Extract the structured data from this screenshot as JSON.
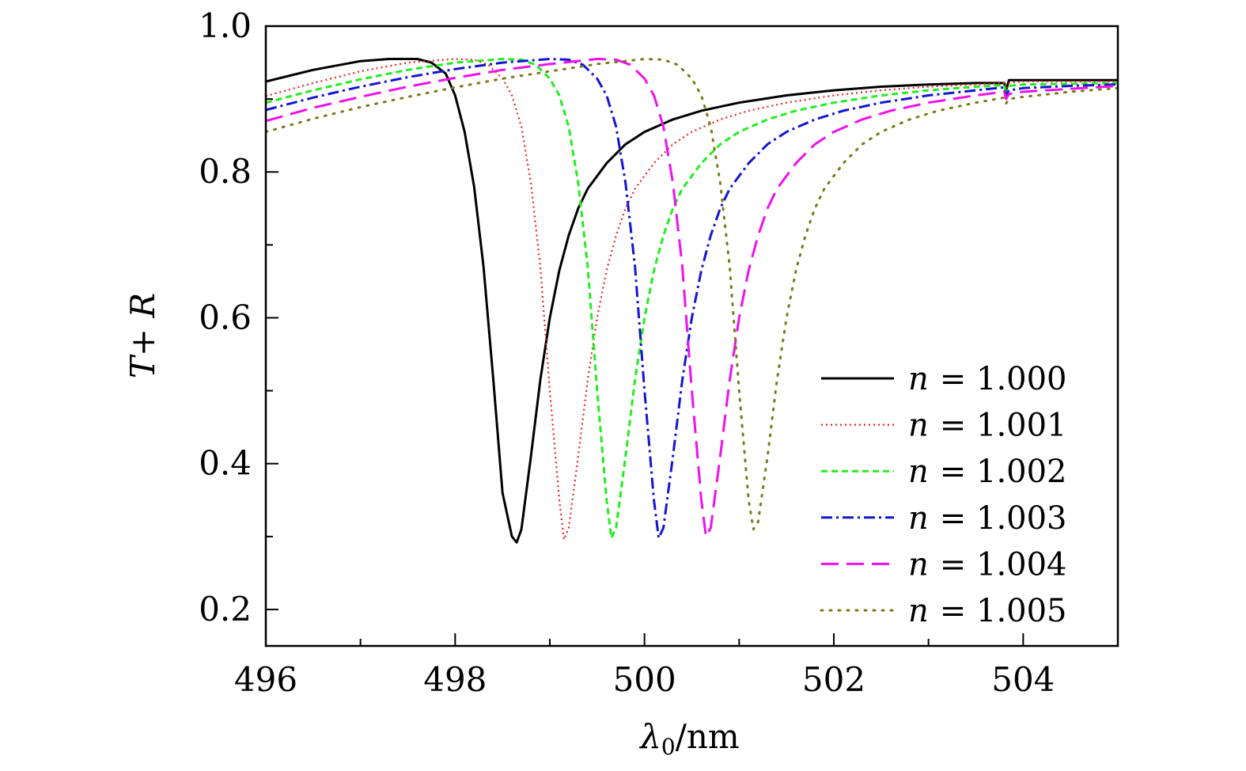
{
  "chart_data": {
    "type": "line",
    "title": "",
    "xlabel": "λ0/nm",
    "xlabel_main": "λ",
    "xlabel_sub": "0",
    "xlabel_unit": "/nm",
    "ylabel": "T+ R",
    "ylabel_parts": [
      "T",
      "+ ",
      "R"
    ],
    "xlim": [
      496,
      505
    ],
    "ylim": [
      0.15,
      1.0
    ],
    "x_ticks": [
      496,
      498,
      500,
      502,
      504
    ],
    "x_tick_labels": [
      "496",
      "498",
      "500",
      "502",
      "504"
    ],
    "x_minor_ticks": [
      497,
      499,
      501,
      503
    ],
    "y_ticks": [
      0.2,
      0.4,
      0.6,
      0.8,
      1.0
    ],
    "y_tick_labels": [
      "0.2",
      "0.4",
      "0.6",
      "0.8",
      "1.0"
    ],
    "y_minor_ticks": [
      0.3,
      0.5,
      0.7,
      0.9
    ],
    "legend_position": "bottom-right",
    "series": [
      {
        "name": "n = 1.000",
        "legend_var": "n",
        "legend_value": "= 1.000",
        "color": "#000000",
        "dash": "",
        "width": 3,
        "x": [
          496.0,
          496.5,
          497.0,
          497.3,
          497.6,
          497.75,
          497.9,
          498.0,
          498.1,
          498.2,
          498.3,
          498.4,
          498.5,
          498.6,
          498.65,
          498.7,
          498.8,
          498.9,
          499.0,
          499.1,
          499.2,
          499.3,
          499.4,
          499.6,
          499.8,
          500.0,
          500.3,
          500.6,
          501.0,
          501.5,
          502.0,
          502.5,
          503.0,
          503.5,
          503.8,
          503.82,
          503.85,
          504.0,
          504.5,
          505.0
        ],
        "y": [
          0.924,
          0.94,
          0.952,
          0.955,
          0.955,
          0.95,
          0.935,
          0.905,
          0.855,
          0.78,
          0.67,
          0.52,
          0.36,
          0.3,
          0.292,
          0.31,
          0.41,
          0.515,
          0.6,
          0.665,
          0.713,
          0.75,
          0.777,
          0.812,
          0.838,
          0.855,
          0.872,
          0.884,
          0.895,
          0.905,
          0.912,
          0.917,
          0.92,
          0.922,
          0.922,
          0.912,
          0.926,
          0.926,
          0.926,
          0.926
        ]
      },
      {
        "name": "n = 1.001",
        "legend_var": "n",
        "legend_value": "= 1.001",
        "color": "#e8231f",
        "dash": "2,4",
        "width": 2.2,
        "x": [
          496.0,
          496.5,
          497.0,
          497.5,
          498.0,
          498.2,
          498.35,
          498.5,
          498.6,
          498.7,
          498.8,
          498.9,
          499.0,
          499.1,
          499.15,
          499.2,
          499.3,
          499.4,
          499.5,
          499.6,
          499.7,
          499.8,
          499.9,
          500.1,
          500.3,
          500.5,
          500.8,
          501.1,
          501.5,
          502.0,
          502.5,
          503.0,
          503.5,
          503.8,
          503.82,
          503.85,
          504.0,
          504.5,
          505.0
        ],
        "y": [
          0.904,
          0.922,
          0.938,
          0.95,
          0.955,
          0.954,
          0.947,
          0.928,
          0.905,
          0.862,
          0.785,
          0.67,
          0.5,
          0.35,
          0.296,
          0.312,
          0.41,
          0.515,
          0.6,
          0.665,
          0.713,
          0.75,
          0.777,
          0.812,
          0.838,
          0.855,
          0.872,
          0.884,
          0.895,
          0.905,
          0.912,
          0.917,
          0.92,
          0.922,
          0.91,
          0.922,
          0.924,
          0.924,
          0.924
        ]
      },
      {
        "name": "n = 1.002",
        "legend_var": "n",
        "legend_value": "= 1.002",
        "color": "#22ee22",
        "dash": "8,5",
        "width": 3,
        "x": [
          496.0,
          496.5,
          497.0,
          497.5,
          498.0,
          498.5,
          498.7,
          498.85,
          499.0,
          499.1,
          499.2,
          499.3,
          499.4,
          499.5,
          499.6,
          499.65,
          499.7,
          499.8,
          499.9,
          500.0,
          500.1,
          500.2,
          500.3,
          500.4,
          500.6,
          500.8,
          501.0,
          501.3,
          501.6,
          502.0,
          502.5,
          503.0,
          503.5,
          503.8,
          503.82,
          503.85,
          504.0,
          504.5,
          505.0
        ],
        "y": [
          0.895,
          0.912,
          0.927,
          0.94,
          0.95,
          0.955,
          0.954,
          0.947,
          0.928,
          0.905,
          0.862,
          0.785,
          0.67,
          0.5,
          0.35,
          0.298,
          0.312,
          0.41,
          0.515,
          0.6,
          0.665,
          0.713,
          0.75,
          0.777,
          0.812,
          0.838,
          0.855,
          0.872,
          0.884,
          0.895,
          0.905,
          0.912,
          0.917,
          0.919,
          0.905,
          0.918,
          0.92,
          0.921,
          0.922
        ]
      },
      {
        "name": "n = 1.003",
        "legend_var": "n",
        "legend_value": "= 1.003",
        "color": "#1515d0",
        "dash": "14,5,3,5",
        "width": 3,
        "x": [
          496.0,
          496.5,
          497.0,
          497.5,
          498.0,
          498.5,
          499.0,
          499.2,
          499.35,
          499.5,
          499.6,
          499.7,
          499.8,
          499.9,
          500.0,
          500.1,
          500.15,
          500.2,
          500.3,
          500.4,
          500.5,
          500.6,
          500.7,
          500.8,
          500.9,
          501.1,
          501.3,
          501.5,
          501.8,
          502.1,
          502.5,
          503.0,
          503.5,
          503.8,
          503.82,
          503.85,
          504.0,
          504.5,
          505.0
        ],
        "y": [
          0.885,
          0.902,
          0.917,
          0.93,
          0.941,
          0.95,
          0.955,
          0.954,
          0.947,
          0.928,
          0.905,
          0.862,
          0.785,
          0.67,
          0.5,
          0.35,
          0.298,
          0.312,
          0.41,
          0.515,
          0.6,
          0.665,
          0.713,
          0.75,
          0.777,
          0.812,
          0.838,
          0.855,
          0.872,
          0.884,
          0.895,
          0.905,
          0.912,
          0.916,
          0.905,
          0.912,
          0.915,
          0.918,
          0.92
        ]
      },
      {
        "name": "n = 1.004",
        "legend_var": "n",
        "legend_value": "= 1.004",
        "color": "#ee11ee",
        "dash": "22,10",
        "width": 3,
        "x": [
          496.0,
          496.5,
          497.0,
          497.5,
          498.0,
          498.5,
          499.0,
          499.5,
          499.7,
          499.85,
          500.0,
          500.1,
          500.2,
          500.3,
          500.4,
          500.5,
          500.6,
          500.65,
          500.7,
          500.8,
          500.9,
          501.0,
          501.1,
          501.2,
          501.3,
          501.4,
          501.6,
          501.8,
          502.0,
          502.3,
          502.6,
          503.0,
          503.5,
          503.8,
          503.82,
          503.85,
          504.0,
          504.5,
          505.0
        ],
        "y": [
          0.87,
          0.888,
          0.903,
          0.917,
          0.929,
          0.94,
          0.948,
          0.955,
          0.954,
          0.947,
          0.928,
          0.905,
          0.862,
          0.785,
          0.67,
          0.5,
          0.35,
          0.3,
          0.312,
          0.41,
          0.515,
          0.6,
          0.665,
          0.713,
          0.75,
          0.777,
          0.812,
          0.838,
          0.855,
          0.872,
          0.884,
          0.895,
          0.905,
          0.91,
          0.9,
          0.907,
          0.91,
          0.914,
          0.918
        ]
      },
      {
        "name": "n = 1.005",
        "legend_var": "n",
        "legend_value": "= 1.005",
        "color": "#7a7a18",
        "dash": "2,9",
        "width": 3,
        "x": [
          496.0,
          496.5,
          497.0,
          497.5,
          498.0,
          498.5,
          499.0,
          499.5,
          500.0,
          500.2,
          500.35,
          500.5,
          500.6,
          500.7,
          500.8,
          500.9,
          501.0,
          501.1,
          501.15,
          501.2,
          501.3,
          501.4,
          501.5,
          501.6,
          501.7,
          501.8,
          501.9,
          502.1,
          502.3,
          502.5,
          502.8,
          503.1,
          503.5,
          503.8,
          503.82,
          503.85,
          504.0,
          504.5,
          505.0
        ],
        "y": [
          0.855,
          0.873,
          0.889,
          0.903,
          0.916,
          0.928,
          0.938,
          0.948,
          0.955,
          0.954,
          0.947,
          0.928,
          0.905,
          0.862,
          0.785,
          0.67,
          0.5,
          0.35,
          0.31,
          0.32,
          0.41,
          0.515,
          0.6,
          0.665,
          0.713,
          0.75,
          0.777,
          0.812,
          0.838,
          0.855,
          0.872,
          0.884,
          0.895,
          0.902,
          0.894,
          0.9,
          0.903,
          0.91,
          0.915
        ]
      }
    ]
  }
}
